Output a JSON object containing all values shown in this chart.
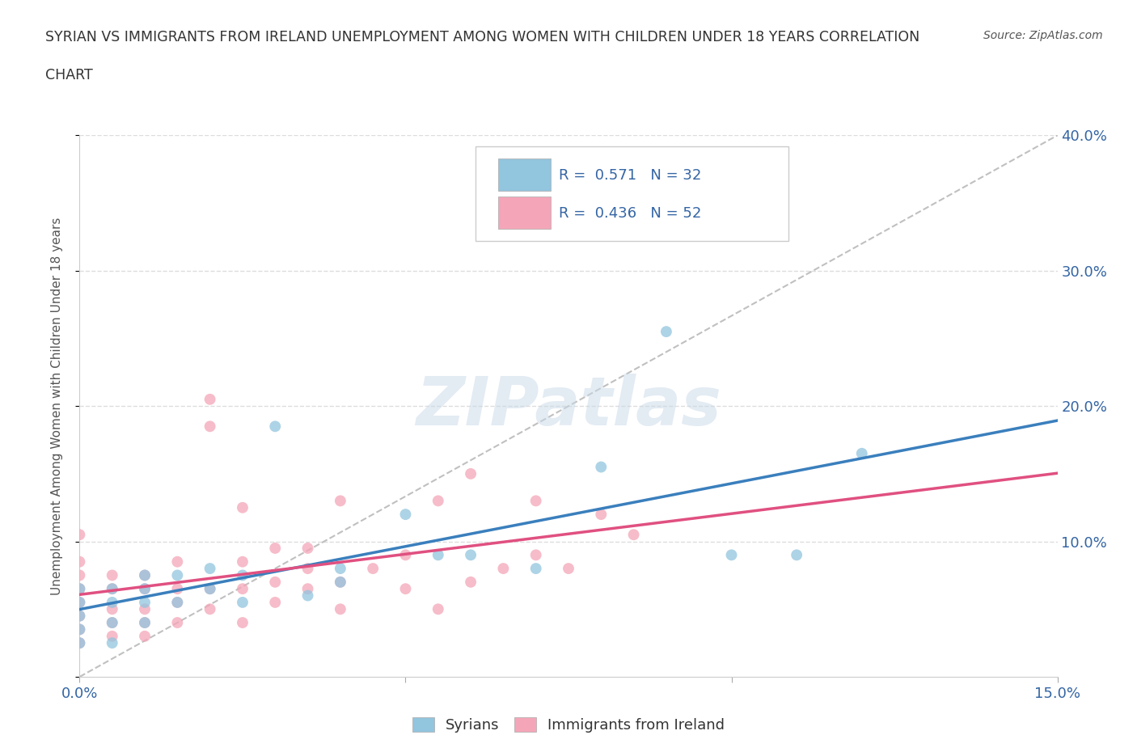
{
  "title_line1": "SYRIAN VS IMMIGRANTS FROM IRELAND UNEMPLOYMENT AMONG WOMEN WITH CHILDREN UNDER 18 YEARS CORRELATION",
  "title_line2": "CHART",
  "source": "Source: ZipAtlas.com",
  "ylabel": "Unemployment Among Women with Children Under 18 years",
  "xmin": 0.0,
  "xmax": 0.15,
  "ymin": 0.0,
  "ymax": 0.4,
  "xticks": [
    0.0,
    0.05,
    0.1,
    0.15
  ],
  "xtick_labels": [
    "0.0%",
    "",
    "",
    "15.0%"
  ],
  "yticks": [
    0.0,
    0.1,
    0.2,
    0.3,
    0.4
  ],
  "ytick_labels_right": [
    "",
    "10.0%",
    "20.0%",
    "30.0%",
    "40.0%"
  ],
  "syrians_color": "#92C5DE",
  "syrians_line_color": "#3A7FBD",
  "ireland_color": "#F4A6B8",
  "ireland_line_color": "#E05080",
  "syrian_R": 0.571,
  "syrian_N": 32,
  "ireland_R": 0.436,
  "ireland_N": 52,
  "legend_color": "#3465A4",
  "watermark": "ZIPatlas",
  "syrians_x": [
    0.0,
    0.0,
    0.0,
    0.0,
    0.0,
    0.005,
    0.005,
    0.005,
    0.005,
    0.01,
    0.01,
    0.01,
    0.01,
    0.015,
    0.015,
    0.02,
    0.02,
    0.025,
    0.025,
    0.03,
    0.035,
    0.04,
    0.04,
    0.05,
    0.055,
    0.06,
    0.07,
    0.08,
    0.09,
    0.1,
    0.11,
    0.12
  ],
  "syrians_y": [
    0.025,
    0.035,
    0.045,
    0.055,
    0.065,
    0.025,
    0.04,
    0.055,
    0.065,
    0.04,
    0.055,
    0.065,
    0.075,
    0.055,
    0.075,
    0.065,
    0.08,
    0.055,
    0.075,
    0.185,
    0.06,
    0.07,
    0.08,
    0.12,
    0.09,
    0.09,
    0.08,
    0.155,
    0.255,
    0.09,
    0.09,
    0.165
  ],
  "ireland_x": [
    0.0,
    0.0,
    0.0,
    0.0,
    0.0,
    0.0,
    0.0,
    0.0,
    0.005,
    0.005,
    0.005,
    0.005,
    0.005,
    0.01,
    0.01,
    0.01,
    0.01,
    0.01,
    0.015,
    0.015,
    0.015,
    0.015,
    0.02,
    0.02,
    0.02,
    0.02,
    0.025,
    0.025,
    0.025,
    0.025,
    0.03,
    0.03,
    0.03,
    0.035,
    0.035,
    0.035,
    0.04,
    0.04,
    0.04,
    0.045,
    0.05,
    0.05,
    0.055,
    0.055,
    0.06,
    0.06,
    0.065,
    0.07,
    0.07,
    0.075,
    0.08,
    0.085
  ],
  "ireland_y": [
    0.025,
    0.035,
    0.045,
    0.055,
    0.065,
    0.075,
    0.085,
    0.105,
    0.03,
    0.04,
    0.05,
    0.065,
    0.075,
    0.03,
    0.04,
    0.05,
    0.065,
    0.075,
    0.04,
    0.055,
    0.065,
    0.085,
    0.05,
    0.065,
    0.185,
    0.205,
    0.04,
    0.065,
    0.085,
    0.125,
    0.055,
    0.07,
    0.095,
    0.065,
    0.08,
    0.095,
    0.05,
    0.07,
    0.13,
    0.08,
    0.065,
    0.09,
    0.05,
    0.13,
    0.07,
    0.15,
    0.08,
    0.09,
    0.13,
    0.08,
    0.12,
    0.105
  ],
  "background_color": "#FFFFFF",
  "grid_color": "#DDDDDD"
}
